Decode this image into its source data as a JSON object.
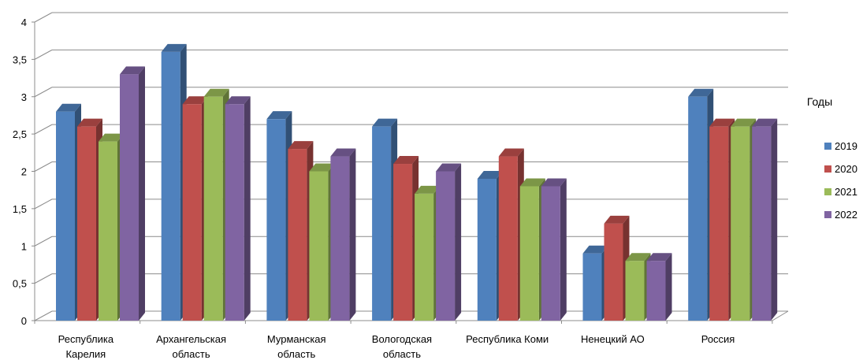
{
  "chart_data": {
    "type": "bar",
    "title": "",
    "xlabel": "",
    "ylabel": "",
    "ylim": [
      0,
      4
    ],
    "yticks": [
      0,
      0.5,
      1,
      1.5,
      2,
      2.5,
      3,
      3.5,
      4
    ],
    "ytick_labels": [
      "0",
      "0,5",
      "1",
      "1,5",
      "2",
      "2,5",
      "3",
      "3,5",
      "4"
    ],
    "grid": true,
    "style": "3d-clustered",
    "categories": [
      [
        "Республика",
        "Карелия"
      ],
      [
        "Архангельская",
        "область"
      ],
      [
        "Мурманская",
        "область"
      ],
      [
        "Вологодская",
        "область"
      ],
      [
        "Республика Коми"
      ],
      [
        "Ненецкий АО"
      ],
      [
        "Россия"
      ]
    ],
    "legend_title": "Годы",
    "legend_position": "right",
    "series": [
      {
        "name": "2019",
        "color": "#4F81BD",
        "values": [
          2.8,
          3.6,
          2.7,
          2.6,
          1.9,
          0.9,
          3.0
        ]
      },
      {
        "name": "2020",
        "color": "#C0504D",
        "values": [
          2.6,
          2.9,
          2.3,
          2.1,
          2.2,
          1.3,
          2.6
        ]
      },
      {
        "name": "2021",
        "color": "#9BBB59",
        "values": [
          2.4,
          3.0,
          2.0,
          1.7,
          1.8,
          0.8,
          2.6
        ]
      },
      {
        "name": "2022",
        "color": "#8064A2",
        "values": [
          3.3,
          2.9,
          2.2,
          2.0,
          1.8,
          0.8,
          2.6
        ]
      }
    ]
  }
}
